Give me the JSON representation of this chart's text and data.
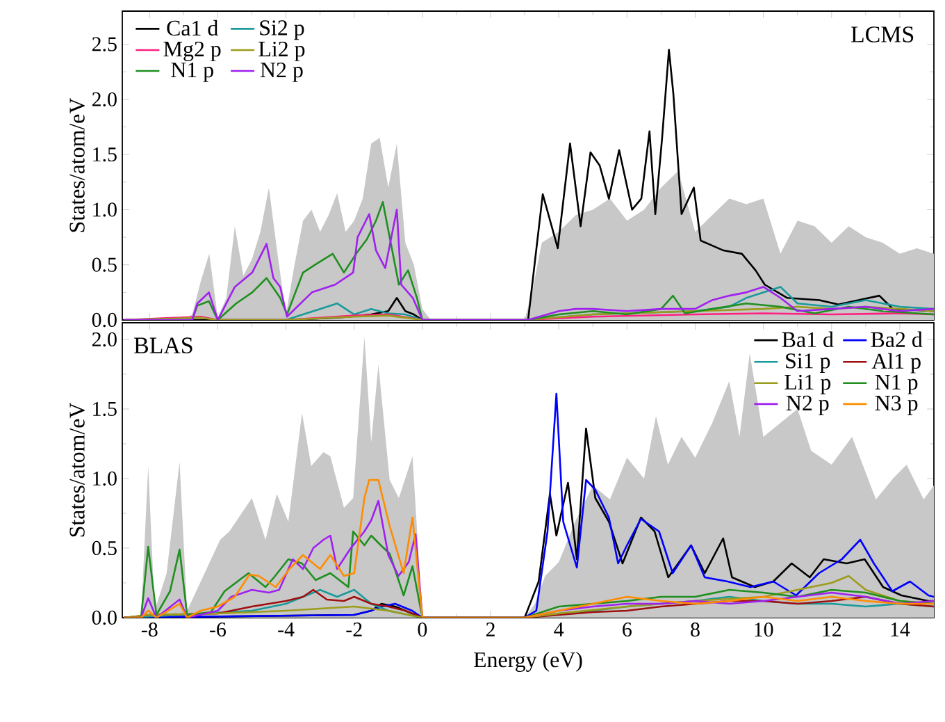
{
  "chart_data": [
    {
      "type": "line",
      "ylabel": "States/atom/eV",
      "xlim": [
        -8.8,
        15
      ],
      "ylim": [
        0,
        2.8
      ],
      "xticks": [
        -8,
        -6,
        -4,
        -2,
        0,
        2,
        4,
        6,
        8,
        10,
        12,
        14
      ],
      "yticks": [
        {
          "value": 0,
          "label": "0.0"
        },
        0.5,
        {
          "value": 1,
          "label": "1.0"
        },
        1.5,
        {
          "value": 2,
          "label": "2.0"
        },
        2.5
      ],
      "tick_labels": "y",
      "legend": "top left",
      "annotations": [
        "LCMS"
      ],
      "series": [
        {
          "type": "area",
          "color": "#c8c8c8",
          "x": [
            -8.75,
            -7,
            -6.75,
            -6.5,
            -6.25,
            -6,
            -5.75,
            -5.5,
            -5.25,
            -5,
            -4.75,
            -4.5,
            -4.25,
            -4,
            -3.75,
            -3.5,
            -3.25,
            -3,
            -2.75,
            -2.5,
            -2.25,
            -2,
            -1.75,
            -1.5,
            -1.25,
            -1,
            -0.75,
            -0.5,
            -0.25,
            0,
            0.25,
            3,
            3.25,
            3.5,
            4,
            4.5,
            5,
            5.5,
            6,
            6.5,
            7,
            7.5,
            8,
            8.5,
            9,
            9.5,
            10,
            10.5,
            11,
            11.5,
            12,
            12.5,
            13,
            13.5,
            14,
            14.5,
            15
          ],
          "values": [
            0,
            0,
            0.05,
            0.35,
            0.6,
            0.02,
            0.2,
            0.85,
            0.4,
            0.55,
            0.8,
            1.2,
            0.6,
            0.05,
            0.5,
            0.9,
            1.0,
            0.8,
            0.95,
            1.15,
            0.8,
            0.9,
            1.1,
            1.6,
            1.65,
            1.2,
            1.6,
            0.7,
            0.5,
            0.1,
            0,
            0,
            0.3,
            0.7,
            0.8,
            0.95,
            1.0,
            1.1,
            0.9,
            1.0,
            1.2,
            1.35,
            0.8,
            0.95,
            1.1,
            1.05,
            1.1,
            0.6,
            0.9,
            0.85,
            0.7,
            0.85,
            0.75,
            0.7,
            0.6,
            0.65,
            0.6
          ]
        },
        {
          "name": "Ca1 d",
          "color": "#000000",
          "x": [
            -8.75,
            -4,
            -2.5,
            -1.5,
            -1,
            -0.75,
            -0.5,
            -0.25,
            0,
            3,
            3.1,
            3.53,
            3.97,
            4.33,
            4.64,
            4.93,
            5.2,
            5.47,
            5.77,
            6.15,
            6.42,
            6.66,
            6.83,
            7.03,
            7.23,
            7.36,
            7.6,
            7.96,
            8.16,
            8.83,
            9.37,
            9.77,
            10.04,
            10.7,
            11.64,
            12.2,
            13.4,
            13.8,
            15
          ],
          "values": [
            0,
            0,
            0.02,
            0.05,
            0.08,
            0.2,
            0.08,
            0.05,
            0,
            0,
            0,
            1.14,
            0.65,
            1.6,
            0.85,
            1.52,
            1.4,
            1.1,
            1.54,
            1.0,
            1.1,
            1.71,
            0.96,
            1.65,
            2.45,
            2.05,
            0.96,
            1.2,
            0.72,
            0.63,
            0.6,
            0.45,
            0.32,
            0.2,
            0.18,
            0.14,
            0.22,
            0.1,
            0.08
          ]
        },
        {
          "name": "Si2 p",
          "color": "#1a9a9a",
          "x": [
            -4,
            -3.5,
            -3,
            -2.5,
            -2,
            -1.5,
            -1,
            -0.5,
            0,
            3,
            5,
            8,
            9,
            9.5,
            10,
            10.5,
            11,
            12,
            13,
            14,
            15
          ],
          "values": [
            0,
            0.05,
            0.1,
            0.15,
            0.05,
            0.1,
            0.06,
            0.05,
            0,
            0,
            0.05,
            0.08,
            0.12,
            0.2,
            0.25,
            0.3,
            0.15,
            0.12,
            0.18,
            0.12,
            0.1
          ]
        },
        {
          "name": "Mg2 p",
          "color": "#ff2080",
          "x": [
            -8.75,
            -6.5,
            -6,
            -4,
            -2,
            -1,
            0,
            3,
            5,
            8,
            10,
            12,
            14,
            15
          ],
          "values": [
            0,
            0.03,
            0,
            0,
            0.04,
            0.05,
            0,
            0,
            0.03,
            0.05,
            0.06,
            0.05,
            0.06,
            0.05
          ]
        },
        {
          "name": "Li2 p",
          "color": "#9c9c1c",
          "x": [
            -8.75,
            -6.5,
            -6,
            -4,
            -2,
            -1,
            0,
            3,
            5,
            8,
            10,
            11,
            12,
            13,
            14,
            15
          ],
          "values": [
            0,
            0.02,
            0,
            0,
            0.03,
            0.04,
            0,
            0,
            0.05,
            0.08,
            0.1,
            0.12,
            0.1,
            0.12,
            0.1,
            0.08
          ]
        },
        {
          "name": "N1 p",
          "color": "#1f8f1f",
          "x": [
            -8.75,
            -6.75,
            -6.6,
            -6.26,
            -6,
            -5.46,
            -4.99,
            -4.57,
            -4.17,
            -3.97,
            -3.5,
            -3.1,
            -2.63,
            -2.3,
            -1.9,
            -1.63,
            -1.36,
            -1.16,
            -0.96,
            -0.69,
            -0.42,
            -0.16,
            0,
            3.1,
            4,
            5,
            6,
            7,
            7.35,
            7.7,
            8.5,
            9.5,
            10.5,
            11.5,
            12.5,
            13.5,
            15
          ],
          "values": [
            0,
            0,
            0.13,
            0.17,
            0,
            0.15,
            0.25,
            0.38,
            0.2,
            0.05,
            0.43,
            0.51,
            0.6,
            0.43,
            0.62,
            0.73,
            0.9,
            1.07,
            0.75,
            0.32,
            0.45,
            0.2,
            0,
            0,
            0.05,
            0.08,
            0.05,
            0.1,
            0.22,
            0.06,
            0.1,
            0.15,
            0.12,
            0.06,
            0.12,
            0.08,
            0.05
          ]
        },
        {
          "name": "N2 p",
          "color": "#a020f0",
          "x": [
            -8.75,
            -6.75,
            -6.6,
            -6.26,
            -6,
            -5.5,
            -4.99,
            -4.57,
            -4.37,
            -4.17,
            -3.97,
            -3.24,
            -2.56,
            -2.03,
            -1.9,
            -1.56,
            -1.36,
            -1.09,
            -0.75,
            -0.62,
            -0.28,
            0,
            3.1,
            4,
            4.5,
            5,
            6,
            7,
            8,
            8.5,
            9,
            9.5,
            10,
            10.5,
            11,
            12,
            13,
            14,
            15
          ],
          "values": [
            0,
            0,
            0.15,
            0.25,
            0,
            0.3,
            0.43,
            0.69,
            0.38,
            0.3,
            0.03,
            0.25,
            0.32,
            0.43,
            0.75,
            0.96,
            0.63,
            0.47,
            1.0,
            0.32,
            0.2,
            0,
            0,
            0.08,
            0.1,
            0.1,
            0.08,
            0.1,
            0.1,
            0.18,
            0.22,
            0.25,
            0.3,
            0.2,
            0.08,
            0.1,
            0.12,
            0.08,
            0.1
          ]
        }
      ]
    },
    {
      "type": "line",
      "xlabel": "Energy (eV)",
      "ylabel": "States/atom/eV",
      "xlim": [
        -8.8,
        15
      ],
      "ylim": [
        0,
        2.12
      ],
      "xticks": [
        -8,
        -6,
        -4,
        -2,
        0,
        2,
        4,
        6,
        8,
        10,
        12,
        14
      ],
      "yticks": [
        {
          "value": 0,
          "label": "0.0"
        },
        0.5,
        {
          "value": 1,
          "label": "1.0"
        },
        1.5,
        {
          "value": 2,
          "label": "2.0"
        }
      ],
      "legend": "top right",
      "annotations": [
        "BLAS"
      ],
      "series": [
        {
          "type": "area",
          "color": "#c8c8c8",
          "x": [
            -8.75,
            -8.25,
            -8.04,
            -7.85,
            -7.5,
            -7.12,
            -6.9,
            -6.5,
            -5.93,
            -5.66,
            -5,
            -4.6,
            -4.27,
            -3.93,
            -3.53,
            -3.26,
            -2.9,
            -2.7,
            -2.3,
            -2.03,
            -1.7,
            -1.5,
            -1.29,
            -0.96,
            -0.69,
            -0.29,
            0,
            3,
            3.3,
            3.6,
            4,
            4.5,
            5,
            5.5,
            6,
            6.5,
            6.85,
            7.2,
            7.6,
            8,
            8.5,
            9,
            9.3,
            9.6,
            10,
            10.5,
            11,
            11.4,
            12,
            12.6,
            13.3,
            13.8,
            14.2,
            14.7,
            15
          ],
          "values": [
            0,
            0,
            1.09,
            0.05,
            0.32,
            1.12,
            0.05,
            0.26,
            0.56,
            0.62,
            0.86,
            0.56,
            0.89,
            0.69,
            1.47,
            1.09,
            1.19,
            1.16,
            0.79,
            0.86,
            2.02,
            1.26,
            1.82,
            0.99,
            0.86,
            1.16,
            0,
            0,
            0.1,
            0.3,
            0.4,
            0.7,
            0.95,
            0.85,
            1.15,
            1.0,
            1.45,
            1.1,
            1.3,
            1.15,
            1.4,
            1.7,
            1.3,
            1.9,
            1.3,
            1.4,
            1.5,
            1.2,
            1.1,
            1.3,
            0.85,
            1.0,
            1.1,
            0.85,
            0.95
          ]
        },
        {
          "name": "Ba1 d",
          "color": "#000000",
          "x": [
            -8.75,
            -2,
            -1.5,
            -1.2,
            -0.8,
            -0.3,
            0,
            3,
            3.41,
            3.74,
            3.93,
            4.27,
            4.53,
            4.8,
            5.07,
            5.47,
            5.87,
            6.41,
            6.81,
            7.21,
            7.88,
            8.28,
            8.82,
            9.08,
            9.75,
            10.29,
            10.83,
            11.36,
            11.77,
            12.44,
            12.97,
            13.51,
            14.05,
            14.84,
            15
          ],
          "values": [
            0,
            0.02,
            0.05,
            0.1,
            0.08,
            0.03,
            0,
            0,
            0.26,
            0.89,
            0.59,
            0.97,
            0.42,
            1.36,
            0.86,
            0.69,
            0.39,
            0.72,
            0.62,
            0.29,
            0.52,
            0.32,
            0.57,
            0.29,
            0.22,
            0.26,
            0.39,
            0.29,
            0.42,
            0.39,
            0.42,
            0.22,
            0.16,
            0.12,
            0.12
          ]
        },
        {
          "name": "Ba2 d",
          "color": "#0000ff",
          "x": [
            -8.75,
            -2,
            -1.5,
            -1.2,
            -0.8,
            -0.3,
            0,
            3,
            3.34,
            3.67,
            3.93,
            4.13,
            4.53,
            4.8,
            5.07,
            5.47,
            5.74,
            6.0,
            6.41,
            6.94,
            7.34,
            7.88,
            8.28,
            8.95,
            9.62,
            10.29,
            10.96,
            11.63,
            12.3,
            12.84,
            13.24,
            13.78,
            14.3,
            14.84,
            15
          ],
          "values": [
            0,
            0.02,
            0.05,
            0.08,
            0.1,
            0.05,
            0,
            0,
            0.05,
            0.62,
            1.61,
            0.69,
            0.36,
            0.99,
            0.92,
            0.72,
            0.39,
            0.52,
            0.71,
            0.62,
            0.32,
            0.52,
            0.29,
            0.26,
            0.22,
            0.26,
            0.16,
            0.32,
            0.42,
            0.56,
            0.39,
            0.19,
            0.26,
            0.16,
            0.15
          ]
        },
        {
          "name": "Si1 p",
          "color": "#1a9a9a",
          "x": [
            -8.75,
            -7.1,
            -5,
            -4,
            -3,
            -2.5,
            -2,
            -1.5,
            -1,
            0,
            3,
            4,
            5,
            6,
            7,
            8,
            9,
            10,
            11,
            12,
            13,
            14,
            15
          ],
          "values": [
            0,
            0.02,
            0.05,
            0.1,
            0.2,
            0.15,
            0.2,
            0.1,
            0.05,
            0,
            0,
            0.03,
            0.05,
            0.08,
            0.1,
            0.12,
            0.15,
            0.12,
            0.1,
            0.1,
            0.08,
            0.1,
            0.08
          ]
        },
        {
          "name": "Al1 p",
          "color": "#a01010",
          "x": [
            -8.75,
            -8,
            -6,
            -5,
            -4,
            -3.5,
            -3.2,
            -2.8,
            -2.3,
            -2,
            -1.5,
            -1,
            -0.5,
            0,
            3,
            4,
            5,
            6,
            7,
            8,
            9,
            10,
            11,
            12,
            13,
            14,
            15
          ],
          "values": [
            0,
            0.02,
            0.03,
            0.08,
            0.12,
            0.15,
            0.2,
            0.13,
            0.12,
            0.15,
            0.1,
            0.08,
            0.05,
            0,
            0,
            0.02,
            0.04,
            0.05,
            0.08,
            0.1,
            0.12,
            0.12,
            0.1,
            0.12,
            0.15,
            0.1,
            0.08
          ]
        },
        {
          "name": "Li1 p",
          "color": "#9c9c1c",
          "x": [
            -8.75,
            -8,
            -6,
            -4,
            -2,
            -1,
            0,
            3,
            4,
            6,
            8,
            10,
            11,
            12,
            12.5,
            13,
            14,
            15
          ],
          "values": [
            0,
            0.02,
            0.03,
            0.05,
            0.08,
            0.05,
            0,
            0,
            0.03,
            0.08,
            0.12,
            0.15,
            0.2,
            0.25,
            0.3,
            0.2,
            0.12,
            0.1
          ]
        },
        {
          "name": "N1 p",
          "color": "#1f8f1f",
          "x": [
            -8.75,
            -8.25,
            -8.04,
            -7.8,
            -7.4,
            -7.12,
            -6.9,
            -6.2,
            -5.8,
            -5.1,
            -4.6,
            -4.35,
            -3.93,
            -3.53,
            -3.13,
            -2.7,
            -2.17,
            -2.03,
            -1.7,
            -1.5,
            -1.22,
            -0.96,
            -0.55,
            -0.29,
            0,
            3,
            4,
            5,
            6,
            7,
            8,
            9,
            10,
            11,
            12,
            13,
            14,
            15
          ],
          "values": [
            0,
            0,
            0.51,
            0.02,
            0.19,
            0.49,
            0.02,
            0.04,
            0.19,
            0.32,
            0.22,
            0.29,
            0.42,
            0.39,
            0.27,
            0.32,
            0.22,
            0.62,
            0.52,
            0.59,
            0.52,
            0.46,
            0.16,
            0.37,
            0,
            0,
            0.08,
            0.1,
            0.12,
            0.15,
            0.15,
            0.2,
            0.18,
            0.15,
            0.2,
            0.18,
            0.12,
            0.1
          ]
        },
        {
          "name": "N2 p",
          "color": "#a020f0",
          "x": [
            -8.75,
            -8.25,
            -8.04,
            -7.8,
            -7.12,
            -6.9,
            -6,
            -5.6,
            -5,
            -4.5,
            -4.2,
            -3.8,
            -3.5,
            -3.2,
            -2.9,
            -2.7,
            -2.5,
            -2.1,
            -1.7,
            -1.5,
            -1.29,
            -1,
            -0.7,
            -0.4,
            -0.2,
            0,
            3,
            4,
            5,
            6,
            7,
            8,
            9,
            10,
            11,
            12,
            13,
            14,
            15
          ],
          "values": [
            0,
            0,
            0.14,
            0,
            0.13,
            0,
            0.05,
            0.15,
            0.2,
            0.18,
            0.2,
            0.42,
            0.35,
            0.5,
            0.56,
            0.59,
            0.35,
            0.5,
            0.62,
            0.7,
            0.84,
            0.45,
            0.3,
            0.4,
            0.6,
            0,
            0,
            0.05,
            0.08,
            0.1,
            0.1,
            0.12,
            0.1,
            0.12,
            0.15,
            0.18,
            0.15,
            0.1,
            0.12
          ]
        },
        {
          "name": "N3 p",
          "color": "#ff8c00",
          "x": [
            -8.75,
            -8.25,
            -8.04,
            -7.8,
            -7.12,
            -6.9,
            -6.5,
            -6,
            -5.5,
            -5.07,
            -4.8,
            -4.3,
            -3.9,
            -3.5,
            -3,
            -2.7,
            -2.3,
            -2,
            -1.7,
            -1.56,
            -1.29,
            -0.96,
            -0.55,
            -0.29,
            0,
            3,
            4,
            5,
            6,
            7,
            8,
            9,
            10,
            11,
            12,
            13,
            14,
            15
          ],
          "values": [
            0,
            0,
            0.05,
            0,
            0.1,
            0,
            0.05,
            0.08,
            0.15,
            0.31,
            0.3,
            0.22,
            0.35,
            0.45,
            0.35,
            0.45,
            0.3,
            0.32,
            0.86,
            0.99,
            0.99,
            0.66,
            0.32,
            0.72,
            0,
            0,
            0.05,
            0.1,
            0.15,
            0.12,
            0.1,
            0.12,
            0.15,
            0.12,
            0.15,
            0.12,
            0.1,
            0.1
          ]
        }
      ]
    }
  ]
}
